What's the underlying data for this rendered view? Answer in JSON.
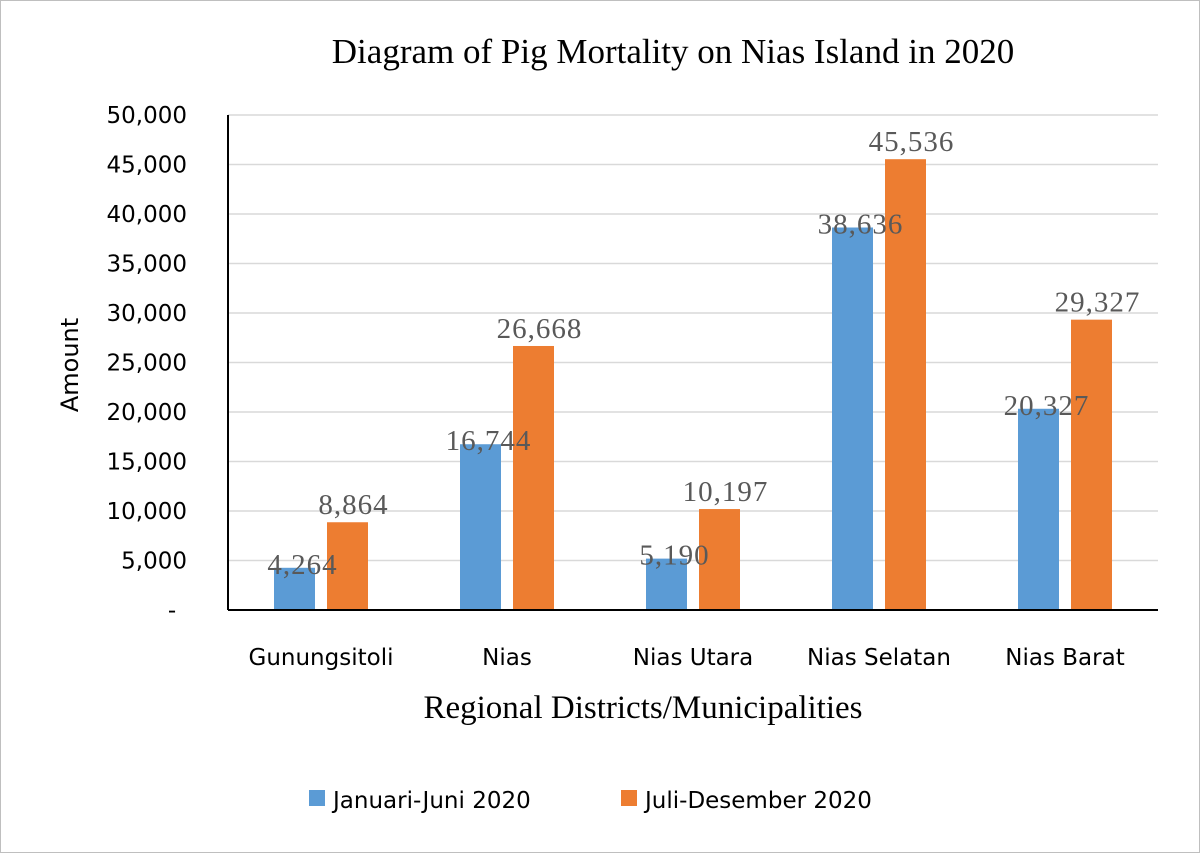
{
  "chart_data": {
    "type": "bar",
    "title": "Diagram of Pig  Mortality on Nias Island in 2020",
    "xlabel": "Regional Districts/Municipalities",
    "ylabel": "Amount",
    "categories": [
      "Gunungsitoli",
      "Nias",
      "Nias Utara",
      "Nias Selatan",
      "Nias Barat"
    ],
    "series": [
      {
        "name": "Januari-Juni  2020",
        "color": "#5b9bd5",
        "values": [
          4264,
          16744,
          5190,
          38636,
          20327
        ],
        "labels": [
          "4,264",
          "16,744",
          "5,190",
          "38,636",
          "20,327"
        ]
      },
      {
        "name": "Juli-Desember 2020",
        "color": "#ed7d31",
        "values": [
          8864,
          26668,
          10197,
          45536,
          29327
        ],
        "labels": [
          "8,864",
          "26,668",
          "10,197",
          "45,536",
          "29,327"
        ]
      }
    ],
    "ylim": [
      0,
      50000
    ],
    "yticks": [
      0,
      5000,
      10000,
      15000,
      20000,
      25000,
      30000,
      35000,
      40000,
      45000,
      50000
    ],
    "ytick_labels": [
      "-",
      "5,000",
      "10,000",
      "15,000",
      "20,000",
      "25,000",
      "30,000",
      "35,000",
      "40,000",
      "45,000",
      "50,000"
    ],
    "grid": true,
    "legend_position": "bottom",
    "gridline_color": "#d9d9d9",
    "axis_color": "#000000"
  }
}
